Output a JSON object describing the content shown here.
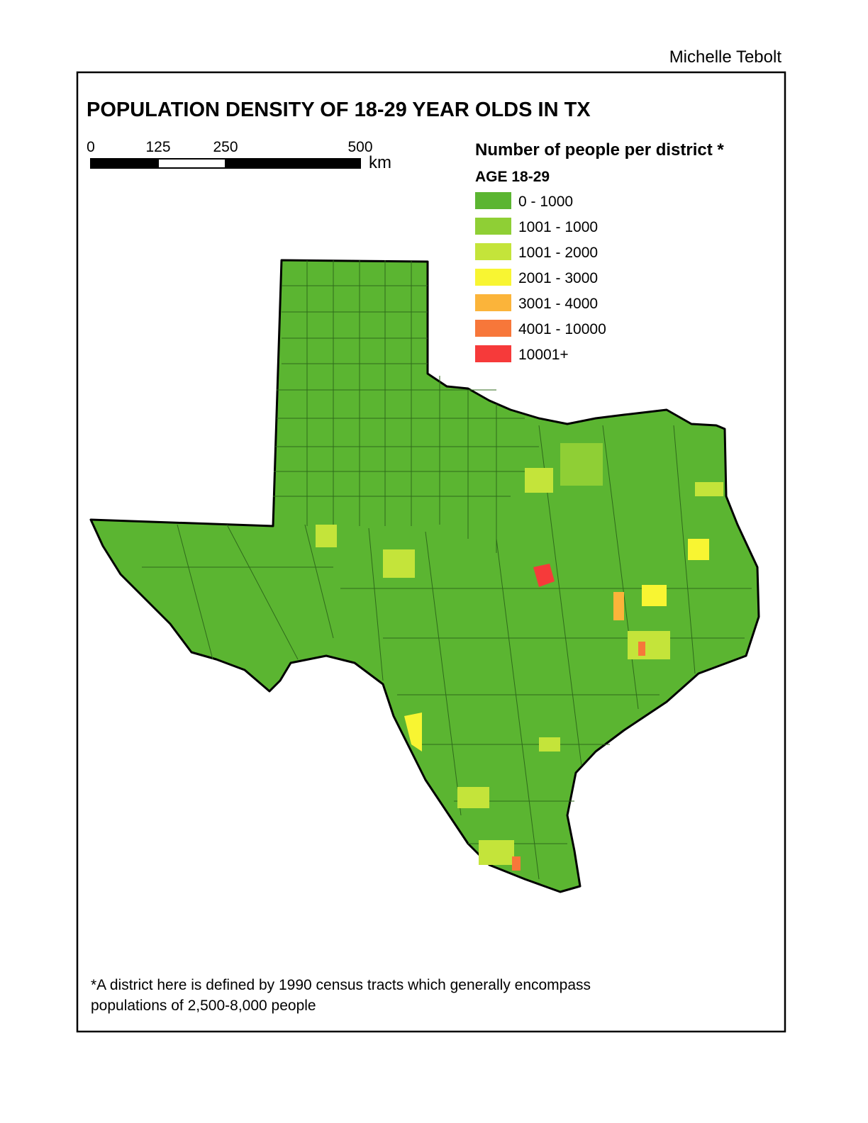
{
  "author": "Michelle Tebolt",
  "title": "POPULATION DENSITY OF 18-29 YEAR OLDS IN TX",
  "scale_bar": {
    "ticks": [
      0,
      125,
      250,
      500
    ],
    "unit": "km"
  },
  "legend": {
    "title": "Number of people per district *",
    "subtitle": "AGE 18-29",
    "items": [
      {
        "label": "0 - 1000",
        "color": "#5bb531"
      },
      {
        "label": "1001 - 1000",
        "color": "#8fcf35"
      },
      {
        "label": "1001 - 2000",
        "color": "#c4e43a"
      },
      {
        "label": "2001 - 3000",
        "color": "#f8f532"
      },
      {
        "label": "3001 - 4000",
        "color": "#fbb43a"
      },
      {
        "label": "4001 - 10000",
        "color": "#f7773a"
      },
      {
        "label": "10001+",
        "color": "#f63a3a"
      }
    ]
  },
  "footnote": [
    "*A district here is defined by 1990 census tracts which generally encompass",
    "populations of 2,500-8,000 people"
  ]
}
